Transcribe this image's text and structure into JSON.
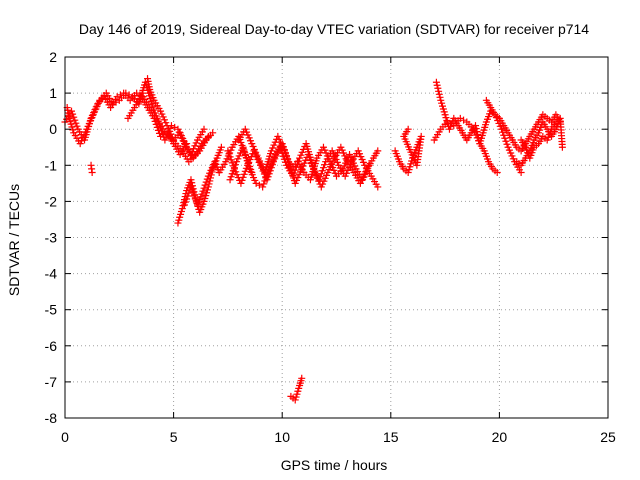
{
  "chart_data": {
    "type": "scatter",
    "title": "Day 146 of 2019, Sidereal Day-to-day VTEC variation (SDTVAR) for receiver p714",
    "xlabel": "GPS time / hours",
    "ylabel": "SDTVAR / TECUs",
    "xlim": [
      0,
      25
    ],
    "ylim": [
      -8,
      2
    ],
    "xticks": [
      0,
      5,
      10,
      15,
      20,
      25
    ],
    "yticks": [
      -8,
      -7,
      -6,
      -5,
      -4,
      -3,
      -2,
      -1,
      0,
      1,
      2
    ],
    "grid": true,
    "marker": "+",
    "series": [
      {
        "name": "p714",
        "color": "#ff0000",
        "segments": [
          [
            [
              0.0,
              0.2
            ],
            [
              0.3,
              0.5
            ],
            [
              0.6,
              0.0
            ],
            [
              0.9,
              -0.3
            ],
            [
              1.2,
              0.3
            ],
            [
              1.5,
              0.7
            ],
            [
              1.8,
              0.9
            ],
            [
              2.1,
              0.6
            ],
            [
              2.4,
              0.9
            ],
            [
              2.7,
              1.0
            ],
            [
              3.0,
              0.8
            ],
            [
              3.3,
              1.0
            ],
            [
              3.6,
              0.9
            ],
            [
              3.9,
              0.6
            ],
            [
              4.2,
              0.3
            ],
            [
              4.5,
              0.0
            ],
            [
              4.8,
              -0.2
            ],
            [
              5.1,
              -0.4
            ],
            [
              5.4,
              -0.6
            ],
            [
              5.7,
              -0.9
            ],
            [
              6.0,
              -0.7
            ],
            [
              6.3,
              -0.4
            ],
            [
              6.6,
              -0.2
            ]
          ],
          [
            [
              0.1,
              0.6
            ],
            [
              0.2,
              0.3
            ],
            [
              0.4,
              -0.1
            ],
            [
              0.7,
              -0.4
            ],
            [
              1.0,
              0.0
            ],
            [
              1.3,
              0.4
            ],
            [
              1.6,
              0.8
            ],
            [
              1.9,
              1.0
            ],
            [
              2.2,
              0.7
            ],
            [
              2.5,
              0.8
            ],
            [
              2.8,
              1.0
            ],
            [
              3.1,
              0.9
            ],
            [
              3.4,
              0.7
            ],
            [
              3.7,
              1.3
            ],
            [
              4.0,
              0.7
            ],
            [
              4.3,
              0.2
            ],
            [
              4.6,
              -0.3
            ],
            [
              4.9,
              0.1
            ],
            [
              5.2,
              0.0
            ],
            [
              5.5,
              -0.4
            ],
            [
              5.8,
              -0.7
            ],
            [
              6.1,
              -0.3
            ],
            [
              6.4,
              0.0
            ]
          ],
          [
            [
              3.8,
              1.4
            ],
            [
              3.9,
              1.1
            ],
            [
              4.1,
              0.8
            ],
            [
              4.4,
              0.5
            ],
            [
              4.7,
              0.1
            ],
            [
              5.0,
              -0.3
            ],
            [
              5.3,
              -0.1
            ],
            [
              5.6,
              -0.5
            ],
            [
              5.9,
              -0.8
            ],
            [
              6.2,
              -0.6
            ],
            [
              6.5,
              -0.3
            ],
            [
              6.8,
              -0.1
            ]
          ],
          [
            [
              2.9,
              0.3
            ],
            [
              3.2,
              0.6
            ],
            [
              3.5,
              0.9
            ],
            [
              3.8,
              0.6
            ],
            [
              4.1,
              0.3
            ],
            [
              4.4,
              -0.2
            ],
            [
              4.7,
              -0.1
            ],
            [
              5.0,
              -0.4
            ],
            [
              5.3,
              -0.7
            ],
            [
              5.6,
              -0.4
            ]
          ],
          [
            [
              1.2,
              -1.0
            ],
            [
              1.25,
              -1.2
            ]
          ],
          [
            [
              5.2,
              -2.6
            ],
            [
              5.4,
              -2.2
            ],
            [
              5.6,
              -1.7
            ],
            [
              5.8,
              -1.4
            ],
            [
              6.0,
              -1.9
            ],
            [
              6.2,
              -2.3
            ],
            [
              6.4,
              -2.0
            ],
            [
              6.6,
              -1.6
            ],
            [
              6.8,
              -1.1
            ],
            [
              7.0,
              -0.8
            ],
            [
              7.2,
              -0.5
            ]
          ],
          [
            [
              5.5,
              -2.1
            ],
            [
              5.8,
              -1.6
            ],
            [
              6.1,
              -2.1
            ],
            [
              6.3,
              -1.8
            ],
            [
              6.6,
              -1.3
            ],
            [
              6.9,
              -0.9
            ],
            [
              7.1,
              -1.2
            ],
            [
              7.4,
              -0.9
            ],
            [
              7.7,
              -0.5
            ],
            [
              8.0,
              -0.2
            ],
            [
              8.3,
              -0.7
            ],
            [
              8.6,
              -1.2
            ]
          ],
          [
            [
              7.5,
              -0.6
            ],
            [
              7.8,
              -1.1
            ],
            [
              8.1,
              -1.5
            ],
            [
              8.4,
              -1.0
            ],
            [
              8.7,
              -0.6
            ],
            [
              9.0,
              -1.0
            ],
            [
              9.3,
              -1.4
            ],
            [
              9.6,
              -0.9
            ],
            [
              9.9,
              -0.5
            ],
            [
              10.2,
              -1.0
            ],
            [
              10.5,
              -1.3
            ],
            [
              10.8,
              -0.8
            ],
            [
              11.1,
              -0.4
            ],
            [
              11.4,
              -1.0
            ],
            [
              11.7,
              -1.4
            ],
            [
              12.0,
              -0.9
            ],
            [
              12.3,
              -0.6
            ],
            [
              12.6,
              -1.0
            ],
            [
              12.9,
              -1.3
            ],
            [
              13.2,
              -0.9
            ],
            [
              13.5,
              -0.6
            ],
            [
              13.8,
              -1.0
            ],
            [
              14.1,
              -1.3
            ],
            [
              14.4,
              -1.6
            ]
          ],
          [
            [
              7.6,
              -1.4
            ],
            [
              7.9,
              -0.9
            ],
            [
              8.2,
              -0.5
            ],
            [
              8.5,
              -1.1
            ],
            [
              8.8,
              -1.5
            ],
            [
              9.1,
              -1.6
            ],
            [
              9.4,
              -1.1
            ],
            [
              9.7,
              -0.7
            ],
            [
              10.0,
              -0.4
            ],
            [
              10.3,
              -0.9
            ],
            [
              10.6,
              -1.5
            ],
            [
              10.9,
              -1.1
            ],
            [
              11.2,
              -0.7
            ],
            [
              11.5,
              -1.2
            ],
            [
              11.8,
              -1.6
            ],
            [
              12.1,
              -1.2
            ],
            [
              12.4,
              -0.8
            ],
            [
              12.7,
              -0.5
            ],
            [
              13.0,
              -0.9
            ],
            [
              13.3,
              -1.2
            ],
            [
              13.6,
              -1.5
            ],
            [
              13.9,
              -1.1
            ],
            [
              14.2,
              -0.8
            ],
            [
              14.4,
              -0.6
            ]
          ],
          [
            [
              8.0,
              -0.3
            ],
            [
              8.3,
              0.0
            ],
            [
              8.6,
              -0.4
            ],
            [
              8.9,
              -0.8
            ],
            [
              9.2,
              -1.2
            ],
            [
              9.5,
              -0.6
            ],
            [
              9.8,
              -0.2
            ],
            [
              10.1,
              -0.6
            ],
            [
              10.4,
              -1.1
            ],
            [
              10.7,
              -0.9
            ],
            [
              11.0,
              -1.2
            ],
            [
              11.3,
              -1.4
            ],
            [
              11.6,
              -0.8
            ],
            [
              11.9,
              -0.5
            ],
            [
              12.2,
              -0.9
            ],
            [
              12.5,
              -1.3
            ],
            [
              12.8,
              -1.1
            ],
            [
              13.1,
              -0.7
            ],
            [
              13.4,
              -1.1
            ],
            [
              13.7,
              -1.4
            ],
            [
              14.0,
              -1.0
            ]
          ],
          [
            [
              10.4,
              -7.4
            ],
            [
              10.6,
              -7.5
            ],
            [
              10.8,
              -7.1
            ],
            [
              10.9,
              -6.9
            ]
          ],
          [
            [
              15.2,
              -0.6
            ],
            [
              15.4,
              -0.9
            ],
            [
              15.6,
              -1.1
            ],
            [
              15.8,
              -1.2
            ],
            [
              16.0,
              -0.8
            ],
            [
              16.2,
              -0.5
            ],
            [
              16.4,
              -0.2
            ],
            [
              16.2,
              -1.0
            ],
            [
              15.6,
              -0.2
            ],
            [
              15.8,
              0.0
            ]
          ],
          [
            [
              17.1,
              1.3
            ],
            [
              17.3,
              0.8
            ],
            [
              17.5,
              0.4
            ],
            [
              17.7,
              0.0
            ],
            [
              17.9,
              0.3
            ],
            [
              18.1,
              0.1
            ],
            [
              18.3,
              -0.1
            ],
            [
              18.5,
              -0.3
            ],
            [
              18.7,
              -0.1
            ],
            [
              18.9,
              0.1
            ],
            [
              19.1,
              -0.4
            ],
            [
              19.3,
              -0.6
            ],
            [
              19.5,
              -0.9
            ],
            [
              19.7,
              -1.1
            ],
            [
              19.9,
              -1.2
            ]
          ],
          [
            [
              17.0,
              -0.3
            ],
            [
              17.3,
              0.0
            ],
            [
              17.6,
              0.2
            ],
            [
              17.9,
              0.1
            ],
            [
              18.2,
              0.3
            ],
            [
              18.5,
              0.2
            ],
            [
              18.8,
              0.0
            ],
            [
              19.1,
              -0.4
            ],
            [
              19.4,
              0.2
            ],
            [
              19.6,
              0.5
            ],
            [
              19.8,
              0.4
            ],
            [
              20.1,
              0.0
            ],
            [
              20.4,
              -0.5
            ],
            [
              20.7,
              -0.9
            ],
            [
              21.0,
              -1.2
            ]
          ],
          [
            [
              19.4,
              0.8
            ],
            [
              19.6,
              0.6
            ],
            [
              19.8,
              0.4
            ],
            [
              20.0,
              0.3
            ],
            [
              20.2,
              0.1
            ],
            [
              20.4,
              -0.1
            ],
            [
              20.6,
              -0.3
            ],
            [
              20.8,
              -0.5
            ],
            [
              21.0,
              -0.6
            ],
            [
              21.2,
              -0.4
            ],
            [
              21.4,
              -0.2
            ],
            [
              21.6,
              0.0
            ],
            [
              21.8,
              0.2
            ],
            [
              22.0,
              0.4
            ],
            [
              22.2,
              0.3
            ],
            [
              22.4,
              0.2
            ],
            [
              22.6,
              0.4
            ],
            [
              22.8,
              0.2
            ]
          ],
          [
            [
              20.8,
              -0.9
            ],
            [
              21.0,
              -1.0
            ],
            [
              21.2,
              -0.8
            ],
            [
              21.4,
              -0.6
            ],
            [
              21.6,
              -0.3
            ],
            [
              21.8,
              -0.1
            ],
            [
              22.0,
              0.2
            ],
            [
              22.2,
              0.0
            ],
            [
              22.4,
              -0.2
            ],
            [
              22.6,
              0.0
            ],
            [
              22.8,
              0.3
            ],
            [
              22.9,
              -0.5
            ]
          ],
          [
            [
              21.0,
              -0.3
            ],
            [
              21.2,
              -0.5
            ],
            [
              21.4,
              -0.8
            ],
            [
              21.6,
              -0.5
            ],
            [
              21.8,
              -0.4
            ],
            [
              22.0,
              -0.2
            ],
            [
              22.2,
              -0.3
            ],
            [
              22.4,
              0.0
            ],
            [
              22.6,
              0.2
            ]
          ]
        ]
      }
    ]
  }
}
